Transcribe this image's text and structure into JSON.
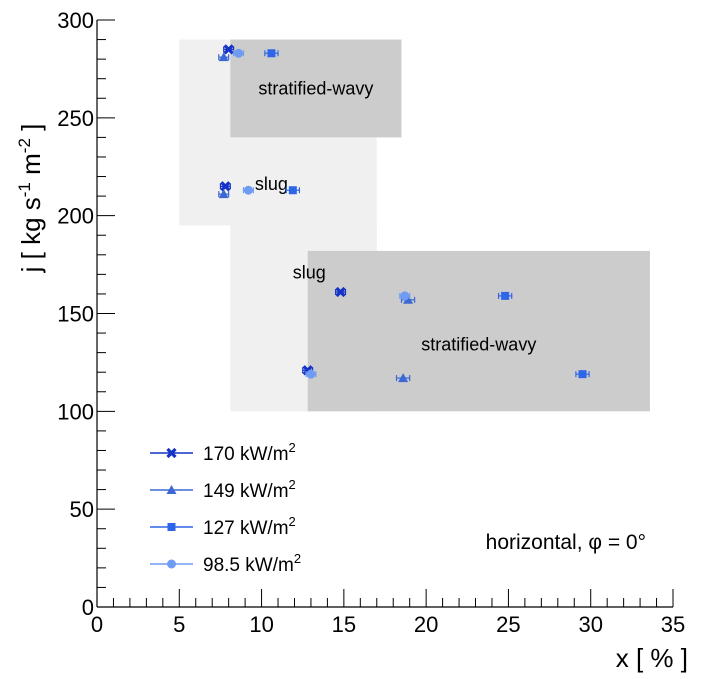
{
  "chart_data": {
    "type": "scatter",
    "xlabel": "x [ % ]",
    "ylabel": "j [ kg s⁻¹ m⁻² ]",
    "xlim": [
      0,
      35
    ],
    "ylim": [
      0,
      300
    ],
    "x_ticks": [
      0,
      5,
      10,
      15,
      20,
      25,
      30,
      35
    ],
    "y_ticks": [
      0,
      50,
      100,
      150,
      200,
      250,
      300
    ],
    "x_tick_labels": [
      "0",
      "5",
      "10",
      "15",
      "20",
      "25",
      "30",
      "35"
    ],
    "y_tick_labels": [
      "0",
      "50",
      "100",
      "150",
      "200",
      "250",
      "300"
    ],
    "regions": [
      {
        "label": "",
        "color": "#f0f0f0",
        "x": [
          5,
          8.1
        ],
        "y": [
          195,
          290
        ]
      },
      {
        "label": "slug",
        "color": "#f0f0f0",
        "x": [
          8.1,
          17
        ],
        "y": [
          240,
          100
        ],
        "label_at": [
          10.6,
          213
        ]
      },
      {
        "label": "slug",
        "color": "#f0f0f0",
        "x": [
          9,
          17
        ],
        "y": [
          100,
          195
        ],
        "label_at": [
          12.9,
          168
        ]
      },
      {
        "label": "",
        "color": "#f0f0f0",
        "x": [
          9,
          12.8
        ],
        "y": [
          100,
          140
        ]
      },
      {
        "label": "stratified-wavy",
        "color": "#cccccc",
        "x": [
          8.1,
          18.5
        ],
        "y": [
          240,
          290
        ],
        "label_at": [
          13.3,
          262
        ]
      },
      {
        "label": "stratified-wavy",
        "color": "#cccccc",
        "x": [
          12.8,
          33.6
        ],
        "y": [
          100,
          182
        ],
        "label_at": [
          23.2,
          131
        ]
      }
    ],
    "series": [
      {
        "name": "170 kW/m²",
        "marker": "cross",
        "color": "#1533c7",
        "x": [
          8.0,
          7.8,
          14.8,
          12.8
        ],
        "y": [
          285,
          215,
          161,
          121
        ],
        "xerr": [
          0.3,
          0.3,
          0.3,
          0.3
        ]
      },
      {
        "name": "149 kW/m²",
        "marker": "triangle",
        "color": "#3c68d4",
        "x": [
          7.7,
          7.7,
          18.9,
          18.6
        ],
        "y": [
          281,
          211,
          157,
          117
        ],
        "xerr": [
          0.3,
          0.3,
          0.4,
          0.4
        ]
      },
      {
        "name": "127 kW/m²",
        "marker": "square",
        "color": "#2f66e8",
        "x": [
          10.6,
          11.9,
          24.8,
          29.5
        ],
        "y": [
          283,
          213,
          159,
          119
        ],
        "xerr": [
          0.4,
          0.4,
          0.4,
          0.4
        ]
      },
      {
        "name": "98.5 kW/m²",
        "marker": "circle",
        "color": "#6f9cf2",
        "x": [
          8.6,
          9.2,
          18.7,
          13.0
        ],
        "y": [
          283,
          213,
          159,
          119
        ],
        "xerr": [
          0.3,
          0.3,
          0.3,
          0.3
        ]
      }
    ],
    "legend": {
      "placement": "bottom-left",
      "entries": [
        {
          "base": "170 kW/m",
          "sup": "2"
        },
        {
          "base": "149 kW/m",
          "sup": "2"
        },
        {
          "base": "127 kW/m",
          "sup": "2"
        },
        {
          "base": "98.5 kW/m",
          "sup": "2"
        }
      ]
    },
    "annotation": "horizontal, φ = 0°"
  },
  "axis_titles": {
    "x": "x [ % ]",
    "y_parts": [
      {
        "t": "j [ kg s"
      },
      {
        "t": "-1",
        "sup": true
      },
      {
        "t": " m"
      },
      {
        "t": "-2",
        "sup": true
      },
      {
        "t": " ]"
      }
    ]
  }
}
